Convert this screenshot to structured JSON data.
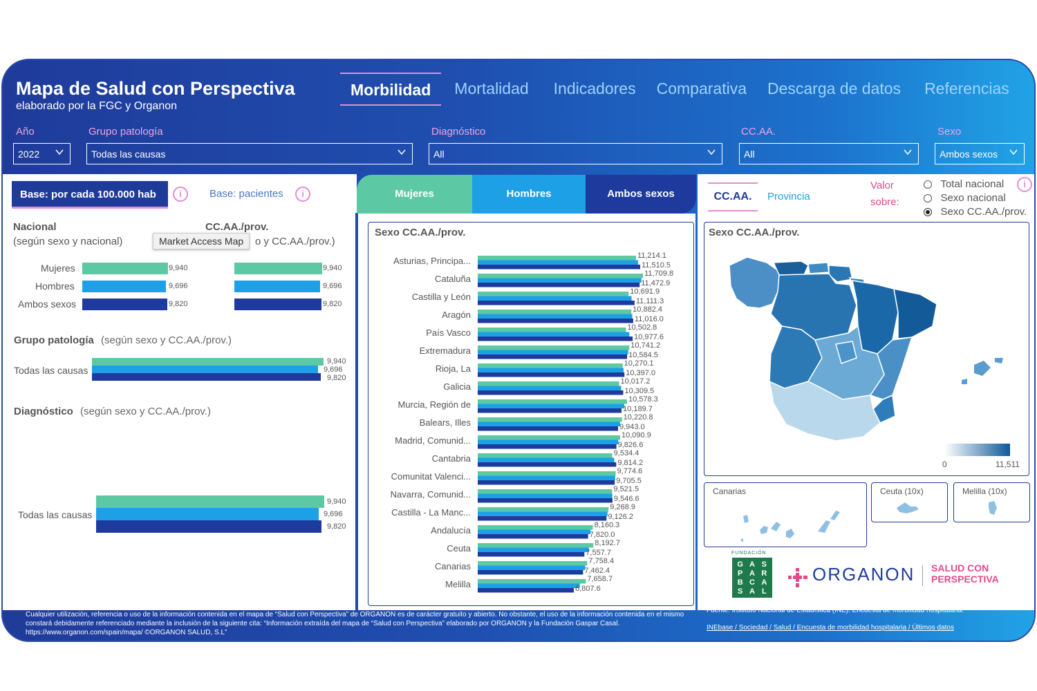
{
  "header": {
    "title": "Mapa de Salud con Perspectiva",
    "subtitle": "elaborado por la FGC y Organon",
    "tabs": [
      "Morbilidad",
      "Mortalidad",
      "Indicadores",
      "Comparativa",
      "Descarga de datos",
      "Referencias"
    ]
  },
  "filters": {
    "year": {
      "label": "Año",
      "value": "2022"
    },
    "group": {
      "label": "Grupo patología",
      "value": "Todas las causas"
    },
    "diagnosis": {
      "label": "Diagnóstico",
      "value": "All"
    },
    "region": {
      "label": "CC.AA.",
      "value": "All"
    },
    "sex": {
      "label": "Sexo",
      "value": "Ambos sexos"
    }
  },
  "base": {
    "active": "Base: por cada 100.000 hab",
    "inactive": "Base: pacientes",
    "info_glyph": "i"
  },
  "sex_tabs": {
    "women": "Mujeres",
    "men": "Hombres",
    "both": "Ambos sexos"
  },
  "map_controls": {
    "tab_ccaa": "CC.AA.",
    "tab_prov": "Provincia",
    "value_on": "Valor",
    "value_on2": "sobre:",
    "options": [
      "Total nacional",
      "Sexo nacional",
      "Sexo CC.AA./prov."
    ],
    "selected": 2
  },
  "colors": {
    "women": "#5dc9a4",
    "men": "#1ea0e6",
    "both": "#1e3a9c",
    "accent": "#e58bd6"
  },
  "left": {
    "national_title": "Nacional",
    "national_sub": "(según sexo y nacional)",
    "ccaa_title": "CC.AA./prov.",
    "ccaa_sub": "o y CC.AA./prov.)",
    "tooltip": "Market Access Map",
    "rows": [
      {
        "label": "Mujeres",
        "value": "9,940"
      },
      {
        "label": "Hombres",
        "value": "9,696"
      },
      {
        "label": "Ambos sexos",
        "value": "9,820"
      }
    ],
    "group_title": "Grupo patología",
    "group_sub": "(según sexo y CC.AA./prov.)",
    "group_row_label": "Todas las causas",
    "diag_title": "Diagnóstico",
    "diag_sub": "(según sexo y CC.AA./prov.)",
    "diag_row_label": "Todas las causas"
  },
  "chart_data": {
    "type": "bar",
    "title": "Sexo CC.AA./prov.",
    "orientation": "horizontal",
    "categories": [
      "Asturias, Principa...",
      "Cataluña",
      "Castilla y León",
      "Aragón",
      "País Vasco",
      "Extremadura",
      "Rioja, La",
      "Galicia",
      "Murcia, Región de",
      "Balears, Illes",
      "Madrid, Comunid...",
      "Cantabria",
      "Comunitat Valenci...",
      "Navarra, Comunid...",
      "Castilla - La Manc...",
      "Andalucía",
      "Ceuta",
      "Canarias",
      "Melilla"
    ],
    "series": [
      {
        "values": [
          11214.1,
          11709.8,
          10691.9,
          10882.4,
          10502.8,
          10741.2,
          10270.1,
          10017.2,
          10578.3,
          10220.8,
          10090.9,
          9534.4,
          9774.6,
          9521.5,
          9268.9,
          8160.3,
          8192.7,
          7758.4,
          7658.7
        ]
      },
      {
        "values": [
          11510.5,
          11472.9,
          11111.3,
          11016.0,
          10977.6,
          10584.5,
          10397.0,
          10309.5,
          10189.7,
          9943.0,
          9826.6,
          9814.2,
          9705.5,
          9546.6,
          9126.2,
          7820.0,
          7557.7,
          7462.4,
          6807.6
        ]
      }
    ],
    "labels_a": [
      "11,214.1",
      "11,709.8",
      "10,691.9",
      "10,882.4",
      "10,502.8",
      "10,741.2",
      "10,270.1",
      "10,017.2",
      "10,578.3",
      "10,220.8",
      "10,090.9",
      "9,534.4",
      "9,774.6",
      "9,521.5",
      "9,268.9",
      "8,160.3",
      "8,192.7",
      "7,758.4",
      "7,658.7"
    ],
    "labels_b": [
      "11,510.5",
      "11,472.9",
      "11,111.3",
      "11,016.0",
      "10,977.6",
      "10,584.5",
      "10,397.0",
      "10,309.5",
      "10,189.7",
      "9,943.0",
      "9,826.6",
      "9,814.2",
      "9,705.5",
      "9,546.6",
      "9,126.2",
      "7,820.0",
      "7,557.7",
      "7,462.4",
      "6,807.6"
    ],
    "xlim": [
      0,
      12000
    ]
  },
  "map": {
    "title": "Sexo CC.AA./prov.",
    "legend_min": "0",
    "legend_max": "11,511",
    "insets": [
      "Canarias",
      "Ceuta (10x)",
      "Melilla (10x)"
    ]
  },
  "logos": {
    "fundacion": "FUNDACIÓN",
    "gaspar": [
      "G",
      "A",
      "S",
      "P",
      "A",
      "R",
      "B",
      "C",
      "A",
      "S",
      "A",
      "L"
    ],
    "organon": "ORGANON",
    "salud": "SALUD CON",
    "perspectiva": "PERSPECTIVA"
  },
  "footer": {
    "disclaimer": "Cualquier utilización, referencia o uso de la información contenida en el mapa de “Salud con Perspectiva” de ORGANON es de carácter gratuito y abierto. No obstante, el uso de la información contenida en el mismo constará debidamente referenciado mediante la inclusión de la siguiente cita: “Información extraída del mapa de “Salud con Perspectiva” elaborado por ORGANON y la Fundación Gaspar Casal. https://www.organon.com/spain/mapa/ ©ORGANON SALUD, S.L”",
    "source": "Fuente: Instituto Nacional de Estadística (INE). Encuesta de morbilidad hospitalaria.",
    "link": "INEbase / Sociedad / Salud / Encuesta de morbilidad hospitalaria / Últimos datos"
  }
}
